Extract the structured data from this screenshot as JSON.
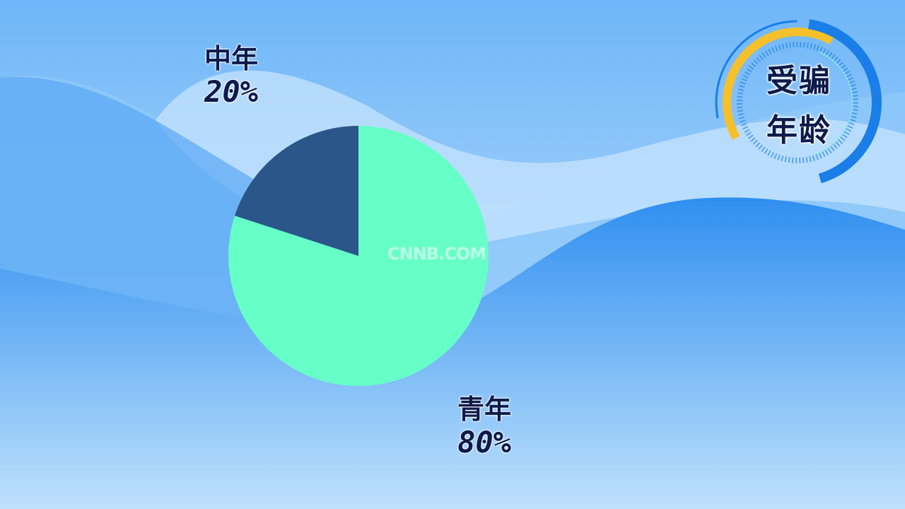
{
  "title": "受骗年龄",
  "title_lines": [
    "受骗",
    "年龄"
  ],
  "watermark": "CNNB.COM",
  "colors": {
    "background_top": "#a8d4fb",
    "background_wave": "#3d9ef5",
    "accent_yellow": "#f5c02a",
    "accent_blue": "#1a7ee8"
  },
  "chart_data": {
    "type": "pie",
    "start_angle": "12 o'clock",
    "slices": [
      {
        "label": "青年",
        "value": 80,
        "value_label": "80%",
        "color": "#66ffc8"
      },
      {
        "label": "中年",
        "value": 20,
        "value_label": "20%",
        "color": "#2a5689"
      }
    ],
    "legend": "none"
  }
}
